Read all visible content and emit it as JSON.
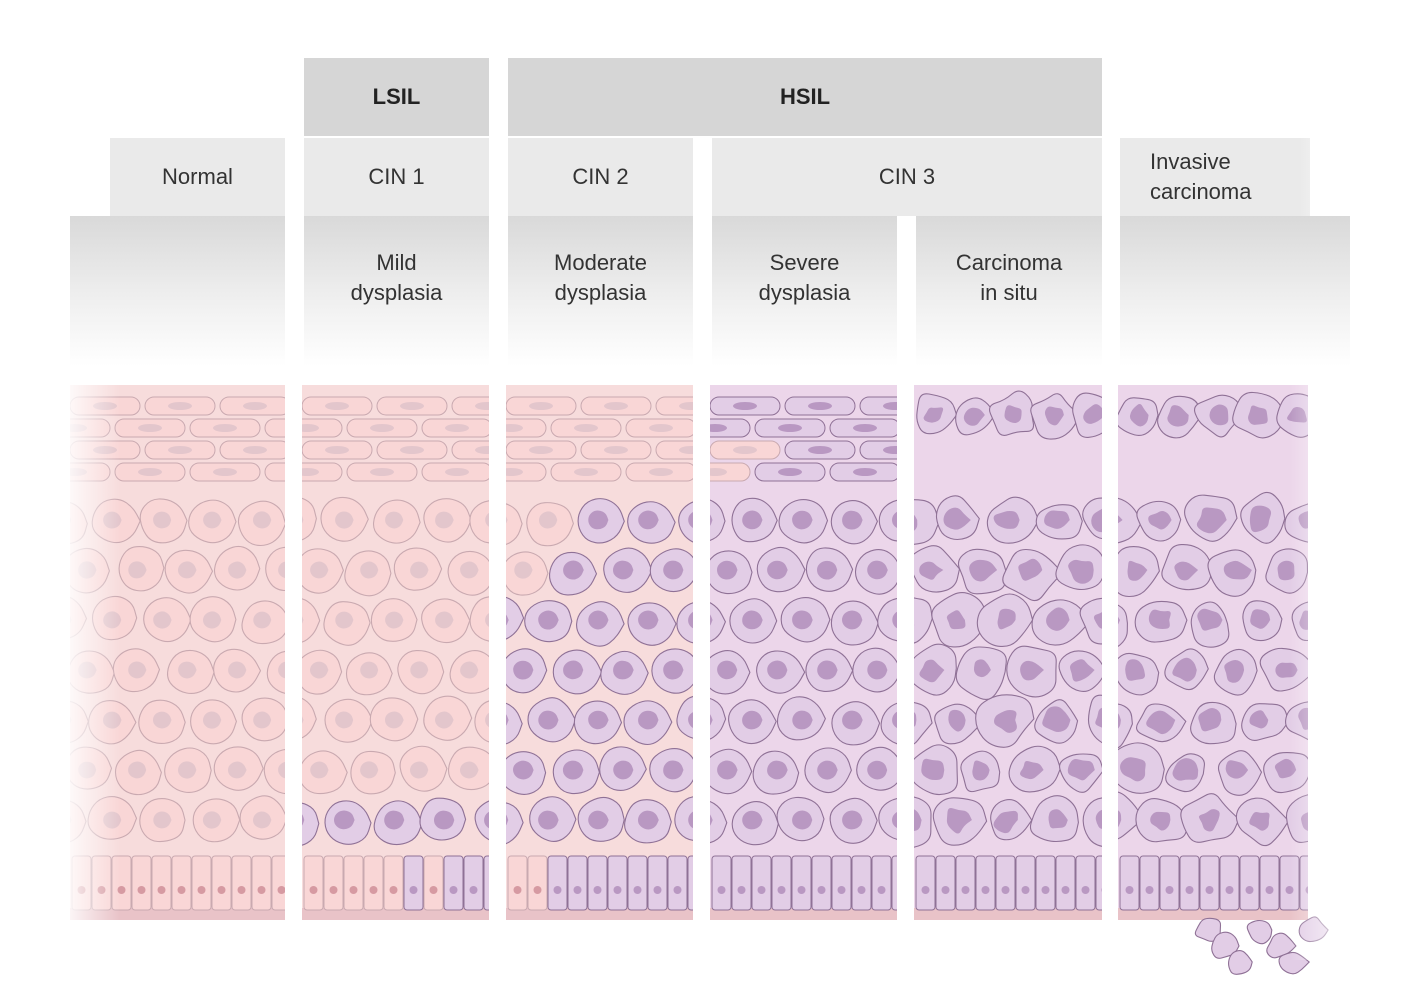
{
  "classification": {
    "lsil": "LSIL",
    "hsil": "HSIL"
  },
  "cin_grades": {
    "normal": "Normal",
    "cin1": "CIN 1",
    "cin2": "CIN 2",
    "cin3": "CIN 3",
    "invasive": "Invasive\ncarcinoma"
  },
  "dysplasia": {
    "mild": "Mild\ndysplasia",
    "moderate": "Moderate\ndysplasia",
    "severe": "Severe\ndysplasia",
    "cis": "Carcinoma\nin situ"
  },
  "colors": {
    "normal_cell_fill": "#f9d6d6",
    "normal_cell_stroke": "#c9a9b0",
    "normal_nucleus": "#e3c6cc",
    "abnormal_cell_fill": "#e2cde6",
    "abnormal_cell_stroke": "#8f7196",
    "abnormal_nucleus": "#b998c2",
    "basement": "#e9c3c8",
    "band_dark": "#d6d6d6",
    "band_light": "#eaeaea"
  },
  "columns": [
    {
      "id": "normal",
      "abnormal_fraction": 0
    },
    {
      "id": "cin1",
      "abnormal_fraction": 0.33
    },
    {
      "id": "cin2",
      "abnormal_fraction": 0.66
    },
    {
      "id": "severe",
      "abnormal_fraction": 0.85
    },
    {
      "id": "cis",
      "abnormal_fraction": 1
    },
    {
      "id": "invasive",
      "abnormal_fraction": 1
    }
  ]
}
